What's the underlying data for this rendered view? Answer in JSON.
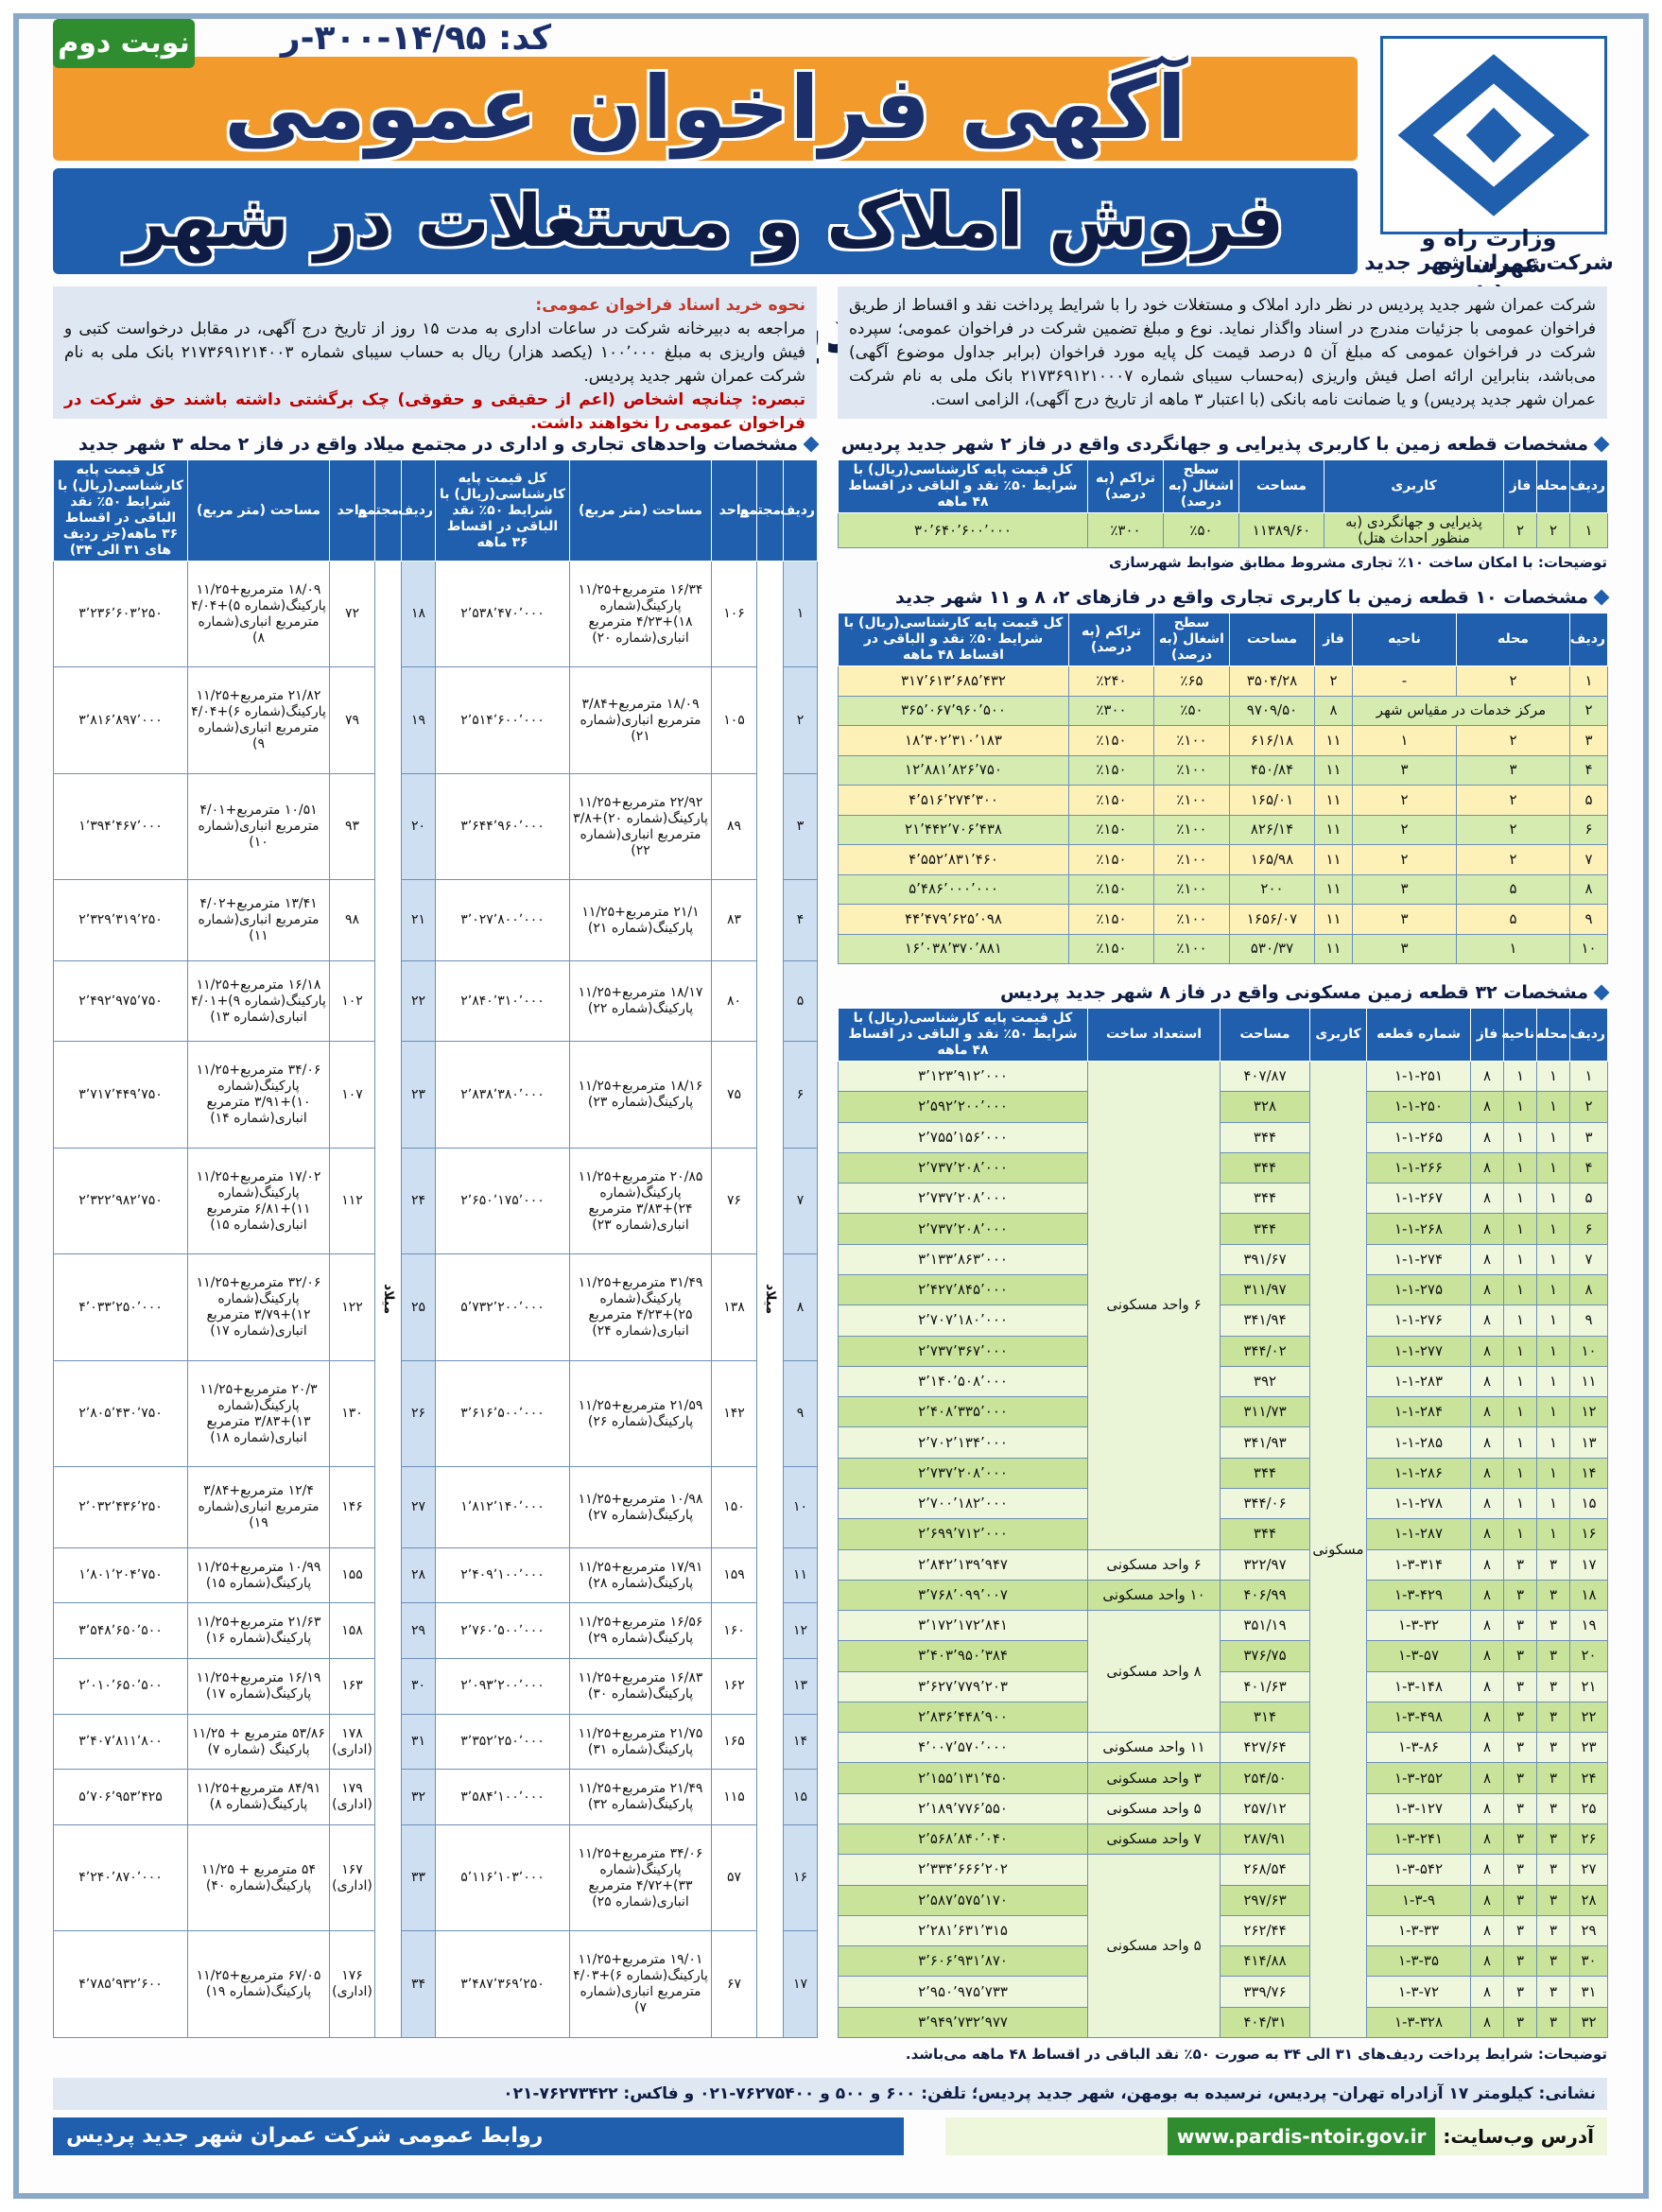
{
  "header": {
    "badge": "نوبت دوم",
    "code": "کد: ۱۴/۹۵-۳۰۰-ر",
    "title": "آگهی فراخوان عمومی",
    "subtitle": "فروش املاک و مستغلات در شهر جدید پردیس",
    "ministry": "وزارت راه و شهرسازی",
    "company": "شرکت عمران شهر جدید پردیس"
  },
  "intro": {
    "text": "شرکت عمران شهر جدید پردیس در نظر دارد املاک و مستغلات خود را با شرایط پرداخت نقد و اقساط از طریق فراخوان عمومی با جزئیات مندرج در اسناد واگذار نماید. نوع و مبلغ تضمین شرکت در فراخوان عمومی؛ سپرده شرکت در فراخوان عمومی که مبلغ آن ۵ درصد قیمت کل پایه مورد فراخوان (برابر جداول موضوع آگهی) می‌باشد، بنابراین ارائه اصل فیش واریزی (به‌حساب سیبای شماره ۲۱۷۳۶۹۱۲۱۰۰۰۷ بانک ملی به نام شرکت عمران شهر جدید پردیس) و یا ضمانت نامه بانکی (با اعتبار ۳ ماهه از تاریخ درج آگهی)، الزامی است."
  },
  "purchase": {
    "heading": "نحوه خرید اسناد فراخوان عمومی:",
    "text": "مراجعه به دبیرخانه شرکت در ساعات اداری به مدت ۱۵ روز از تاریخ درج آگهی، در مقابل درخواست کتبی و فیش واریزی به مبلغ ۱۰۰٬۰۰۰ (یکصد هزار) ریال به حساب سیبای شماره ۲۱۷۳۶۹۱۲۱۴۰۰۳ بانک ملی به نام شرکت عمران شهر جدید پردیس.",
    "note": "تبصره: چنانچه اشخاص (اعم از حقیقی و حقوقی) چک برگشتی داشته باشند حق شرکت در فراخوان عمومی را نخواهند داشت."
  },
  "table1": {
    "title": "مشخصات قطعه زمین با کاربری پذیرایی و جهانگردی واقع در فاز ۲ شهر جدید پردیس",
    "columns": [
      "ردیف",
      "محله",
      "فاز",
      "کاربری",
      "مساحت",
      "سطح اشغال (به درصد)",
      "تراکم (به درصد)",
      "کل قیمت پایه کارشناسی(ریال) با شرایط ۵۰٪ نقد و الباقی در اقساط ۴۸ ماهه"
    ],
    "rows": [
      [
        "۱",
        "۲",
        "۲",
        "پذیرایی و جهانگردی (به منظور احداث هتل)",
        "۱۱۳۸۹/۶۰",
        "٪۵۰",
        "٪۳۰۰",
        "۳۰٬۶۴۰٬۶۰۰٬۰۰۰"
      ]
    ],
    "note": "توضیحات: با امکان ساخت ۱۰٪ تجاری مشروط مطابق ضوابط شهرسازی"
  },
  "table2": {
    "title": "مشخصات ۱۰ قطعه زمین با کاربری تجاری واقع در فازهای ۲، ۸ و ۱۱ شهر جدید پردیس",
    "columns": [
      "ردیف",
      "محله",
      "ناحیه",
      "فاز",
      "مساحت",
      "سطح اشغال (به درصد)",
      "تراکم (به درصد)",
      "کل قیمت پایه کارشناسی(ریال) با شرایط ۵۰٪ نقد و الباقی در اقساط ۴۸ ماهه"
    ],
    "rows": [
      [
        "۱",
        "۲",
        "-",
        "۲",
        "۳۵۰۴/۲۸",
        "٪۶۵",
        "٪۲۴۰",
        "۳۱۷٬۶۱۳٬۶۸۵٬۴۳۲"
      ],
      [
        "۲",
        "مرکز خدمات در مقیاس شهر",
        null,
        "۸",
        "۹۷۰۹/۵۰",
        "٪۵۰",
        "٪۳۰۰",
        "۳۶۵٬۰۶۷٬۹۶۰٬۵۰۰"
      ],
      [
        "۳",
        "۲",
        "۱",
        "۱۱",
        "۶۱۶/۱۸",
        "٪۱۰۰",
        "٪۱۵۰",
        "۱۸٬۳۰۲٬۳۱۰٬۱۸۳"
      ],
      [
        "۴",
        "۳",
        "۳",
        "۱۱",
        "۴۵۰/۸۴",
        "٪۱۰۰",
        "٪۱۵۰",
        "۱۲٬۸۸۱٬۸۲۶٬۷۵۰"
      ],
      [
        "۵",
        "۲",
        "۲",
        "۱۱",
        "۱۶۵/۰۱",
        "٪۱۰۰",
        "٪۱۵۰",
        "۴٬۵۱۶٬۲۷۴٬۳۰۰"
      ],
      [
        "۶",
        "۲",
        "۲",
        "۱۱",
        "۸۲۶/۱۴",
        "٪۱۰۰",
        "٪۱۵۰",
        "۲۱٬۴۴۲٬۷۰۶٬۴۳۸"
      ],
      [
        "۷",
        "۲",
        "۲",
        "۱۱",
        "۱۶۵/۹۸",
        "٪۱۰۰",
        "٪۱۵۰",
        "۴٬۵۵۲٬۸۳۱٬۴۶۰"
      ],
      [
        "۸",
        "۵",
        "۳",
        "۱۱",
        "۲۰۰",
        "٪۱۰۰",
        "٪۱۵۰",
        "۵٬۴۸۶٬۰۰۰٬۰۰۰"
      ],
      [
        "۹",
        "۵",
        "۳",
        "۱۱",
        "۱۶۵۶/۰۷",
        "٪۱۰۰",
        "٪۱۵۰",
        "۴۴٬۴۷۹٬۶۲۵٬۰۹۸"
      ],
      [
        "۱۰",
        "۱",
        "۳",
        "۱۱",
        "۵۳۰/۳۷",
        "٪۱۰۰",
        "٪۱۵۰",
        "۱۶٬۰۳۸٬۳۷۰٬۸۸۱"
      ]
    ]
  },
  "table3": {
    "title": "مشخصات ۳۲ قطعه زمین مسکونی واقع در فاز ۸ شهر جدید پردیس",
    "columns": [
      "ردیف",
      "محله",
      "ناحیه",
      "فاز",
      "شماره قطعه",
      "کاربری",
      "مساحت",
      "استعداد ساخت",
      "کل قیمت پایه کارشناسی(ریال) با شرایط ۵۰٪ نقد و الباقی در اقساط ۴۸ ماهه"
    ],
    "rows": [
      [
        "۱",
        "۱",
        "۱",
        "۸",
        "۱-۱-۲۵۱",
        "مسکونی",
        "۴۰۷/۸۷",
        "۶ واحد مسکونی",
        "۳٬۱۲۳٬۹۱۲٬۰۰۰"
      ],
      [
        "۲",
        "۱",
        "۱",
        "۸",
        "۱-۱-۲۵۰",
        null,
        "۳۲۸",
        null,
        "۲٬۵۹۲٬۲۰۰٬۰۰۰"
      ],
      [
        "۳",
        "۱",
        "۱",
        "۸",
        "۱-۱-۲۶۵",
        null,
        "۳۴۴",
        null,
        "۲٬۷۵۵٬۱۵۶٬۰۰۰"
      ],
      [
        "۴",
        "۱",
        "۱",
        "۸",
        "۱-۱-۲۶۶",
        null,
        "۳۴۴",
        null,
        "۲٬۷۳۷٬۲۰۸٬۰۰۰"
      ],
      [
        "۵",
        "۱",
        "۱",
        "۸",
        "۱-۱-۲۶۷",
        null,
        "۳۴۴",
        null,
        "۲٬۷۳۷٬۲۰۸٬۰۰۰"
      ],
      [
        "۶",
        "۱",
        "۱",
        "۸",
        "۱-۱-۲۶۸",
        null,
        "۳۴۴",
        null,
        "۲٬۷۳۷٬۲۰۸٬۰۰۰"
      ],
      [
        "۷",
        "۱",
        "۱",
        "۸",
        "۱-۱-۲۷۴",
        null,
        "۳۹۱/۶۷",
        null,
        "۳٬۱۳۳٬۸۶۳٬۰۰۰"
      ],
      [
        "۸",
        "۱",
        "۱",
        "۸",
        "۱-۱-۲۷۵",
        null,
        "۳۱۱/۹۷",
        null,
        "۲٬۴۲۷٬۸۴۵٬۰۰۰"
      ],
      [
        "۹",
        "۱",
        "۱",
        "۸",
        "۱-۱-۲۷۶",
        null,
        "۳۴۱/۹۴",
        null,
        "۲٬۷۰۷٬۱۸۰٬۰۰۰"
      ],
      [
        "۱۰",
        "۱",
        "۱",
        "۸",
        "۱-۱-۲۷۷",
        null,
        "۳۴۴/۰۲",
        null,
        "۲٬۷۳۷٬۳۶۷٬۰۰۰"
      ],
      [
        "۱۱",
        "۱",
        "۱",
        "۸",
        "۱-۱-۲۸۳",
        null,
        "۳۹۲",
        null,
        "۳٬۱۴۰٬۵۰۸٬۰۰۰"
      ],
      [
        "۱۲",
        "۱",
        "۱",
        "۸",
        "۱-۱-۲۸۴",
        null,
        "۳۱۱/۷۳",
        null,
        "۲٬۴۰۸٬۳۳۵٬۰۰۰"
      ],
      [
        "۱۳",
        "۱",
        "۱",
        "۸",
        "۱-۱-۲۸۵",
        null,
        "۳۴۱/۹۳",
        null,
        "۲٬۷۰۲٬۱۳۴٬۰۰۰"
      ],
      [
        "۱۴",
        "۱",
        "۱",
        "۸",
        "۱-۱-۲۸۶",
        null,
        "۳۴۴",
        null,
        "۲٬۷۳۷٬۲۰۸٬۰۰۰"
      ],
      [
        "۱۵",
        "۱",
        "۱",
        "۸",
        "۱-۱-۲۷۸",
        null,
        "۳۴۴/۰۶",
        null,
        "۲٬۷۰۰٬۱۸۲٬۰۰۰"
      ],
      [
        "۱۶",
        "۱",
        "۱",
        "۸",
        "۱-۱-۲۸۷",
        null,
        "۳۴۴",
        null,
        "۲٬۶۹۹٬۷۱۲٬۰۰۰"
      ],
      [
        "۱۷",
        "۳",
        "۳",
        "۸",
        "۱-۳-۳۱۴",
        null,
        "۳۲۲/۹۷",
        "۶ واحد مسکونی",
        "۲٬۸۴۲٬۱۳۹٬۹۴۷"
      ],
      [
        "۱۸",
        "۳",
        "۳",
        "۸",
        "۱-۳-۴۲۹",
        null,
        "۴۰۶/۹۹",
        "۱۰ واحد مسکونی",
        "۳٬۷۶۸٬۰۹۹٬۰۰۷"
      ],
      [
        "۱۹",
        "۳",
        "۳",
        "۸",
        "۱-۳-۳۲",
        null,
        "۳۵۱/۱۹",
        "۸ واحد مسکونی",
        "۳٬۱۷۲٬۱۷۲٬۸۴۱"
      ],
      [
        "۲۰",
        "۳",
        "۳",
        "۸",
        "۱-۳-۵۷",
        null,
        "۳۷۶/۷۵",
        null,
        "۳٬۴۰۳٬۹۵۰٬۳۸۴"
      ],
      [
        "۲۱",
        "۳",
        "۳",
        "۸",
        "۱-۳-۱۴۸",
        null,
        "۴۰۱/۶۳",
        null,
        "۳٬۶۲۷٬۷۷۹٬۲۰۳"
      ],
      [
        "۲۲",
        "۳",
        "۳",
        "۸",
        "۱-۳-۴۹۸",
        null,
        "۳۱۴",
        null,
        "۲٬۸۳۶٬۴۴۸٬۹۰۰"
      ],
      [
        "۲۳",
        "۳",
        "۳",
        "۸",
        "۱-۳-۸۶",
        null,
        "۴۲۷/۶۴",
        "۱۱ واحد مسکونی",
        "۴٬۰۰۷٬۵۷۰٬۰۰۰"
      ],
      [
        "۲۴",
        "۳",
        "۳",
        "۸",
        "۱-۳-۲۵۲",
        null,
        "۲۵۴/۵۰",
        "۳ واحد مسکونی",
        "۲٬۱۵۵٬۱۳۱٬۴۵۰"
      ],
      [
        "۲۵",
        "۳",
        "۳",
        "۸",
        "۱-۳-۱۲۷",
        null,
        "۲۵۷/۱۲",
        "۵ واحد مسکونی",
        "۲٬۱۸۹٬۷۷۶٬۵۵۰"
      ],
      [
        "۲۶",
        "۳",
        "۳",
        "۸",
        "۱-۳-۲۴۱",
        null,
        "۲۸۷/۹۱",
        "۷ واحد مسکونی",
        "۲٬۵۶۸٬۸۴۰٬۰۴۰"
      ],
      [
        "۲۷",
        "۳",
        "۳",
        "۸",
        "۱-۳-۵۴۲",
        null,
        "۲۶۸/۵۴",
        "۵ واحد مسکونی",
        "۲٬۳۳۴٬۶۶۶٬۲۰۲"
      ],
      [
        "۲۸",
        "۳",
        "۳",
        "۸",
        "۱-۳-۹",
        null,
        "۲۹۷/۶۳",
        null,
        "۲٬۵۸۷٬۵۷۵٬۱۷۰"
      ],
      [
        "۲۹",
        "۳",
        "۳",
        "۸",
        "۱-۳-۳۳",
        null,
        "۲۶۲/۴۴",
        null,
        "۲٬۲۸۱٬۶۳۱٬۳۱۵"
      ],
      [
        "۳۰",
        "۳",
        "۳",
        "۸",
        "۱-۳-۳۵",
        null,
        "۴۱۴/۸۸",
        null,
        "۳٬۶۰۶٬۹۳۱٬۸۷۰"
      ],
      [
        "۳۱",
        "۳",
        "۳",
        "۸",
        "۱-۳-۷۲",
        null,
        "۳۳۹/۷۶",
        null,
        "۲٬۹۵۰٬۹۷۵٬۷۳۳"
      ],
      [
        "۳۲",
        "۳",
        "۳",
        "۸",
        "۱-۳-۳۲۸",
        null,
        "۴۰۴/۳۱",
        null,
        "۳٬۹۴۹٬۷۳۲٬۹۷۷"
      ]
    ]
  },
  "table4": {
    "title": "مشخصات واحدهای تجاری و اداری در مجتمع میلاد واقع در فاز ۲ محله ۳ شهر جدید پردیس",
    "columns": [
      "ردیف",
      "مجتمع",
      "واحد",
      "مساحت (متر مربع)",
      "کل قیمت پایه کارشناسی(ریال) با شرایط ۵۰٪ نقد الباقی در اقساط ۳۶ ماهه",
      "ردیف",
      "مجتمع",
      "واحد",
      "مساحت (متر مربع)",
      "کل قیمت پایه کارشناسی(ریال) با شرایط ۵۰٪ نقد الباقی در اقساط ۳۶ ماهه(جز ردیف های ۳۱ الی ۳۴)"
    ],
    "rows": [
      [
        "۱",
        "میلاد",
        "۱۰۶",
        "۱۶/۳۴ مترمربع+۱۱/۲۵ پارکینگ(شماره ۱۸)+۴/۲۳ مترمربع انباری(شماره ۲۰)",
        "۲٬۵۳۸٬۴۷۰٬۰۰۰",
        "۱۸",
        "میلاد",
        "۷۲",
        "۱۸/۰۹ مترمربع+۱۱/۲۵ پارکینگ(شماره ۵)+۴/۰۴ مترمربع انباری(شماره ۸)",
        "۳٬۲۳۶٬۶۰۳٬۲۵۰"
      ],
      [
        "۲",
        null,
        "۱۰۵",
        "۱۸/۰۹ مترمربع+۳/۸۴ مترمربع انباری(شماره ۲۱)",
        "۲٬۵۱۴٬۶۰۰٬۰۰۰",
        "۱۹",
        null,
        "۷۹",
        "۲۱/۸۲ مترمربع+۱۱/۲۵ پارکینگ(شماره ۶)+۴/۰۴ مترمربع انباری(شماره ۹)",
        "۳٬۸۱۶٬۸۹۷٬۰۰۰"
      ],
      [
        "۳",
        null,
        "۸۹",
        "۲۲/۹۲ مترمربع+۱۱/۲۵ پارکینگ(شماره ۲۰)+۳/۸ مترمربع انباری(شماره ۲۲)",
        "۳٬۶۴۴٬۹۶۰٬۰۰۰",
        "۲۰",
        null,
        "۹۳",
        "۱۰/۵۱ مترمربع+۴/۰۱ مترمربع انباری(شماره ۱۰)",
        "۱٬۳۹۴٬۴۶۷٬۰۰۰"
      ],
      [
        "۴",
        null,
        "۸۳",
        "۲۱/۱ مترمربع+۱۱/۲۵ پارکینگ(شماره ۲۱)",
        "۳٬۰۲۷٬۸۰۰٬۰۰۰",
        "۲۱",
        null,
        "۹۸",
        "۱۳/۴۱ مترمربع+۴/۰۲ مترمربع انباری(شماره ۱۱)",
        "۲٬۳۲۹٬۳۱۹٬۲۵۰"
      ],
      [
        "۵",
        null,
        "۸۰",
        "۱۸/۱۷ مترمربع+۱۱/۲۵ پارکینگ(شماره ۲۲)",
        "۲٬۸۴۰٬۳۱۰٬۰۰۰",
        "۲۲",
        null,
        "۱۰۲",
        "۱۶/۱۸ مترمربع+۱۱/۲۵ پارکینگ(شماره ۹)+۴/۰۱ انباری(شماره ۱۳)",
        "۲٬۴۹۲٬۹۷۵٬۷۵۰"
      ],
      [
        "۶",
        null,
        "۷۵",
        "۱۸/۱۶ مترمربع+۱۱/۲۵ پارکینگ(شماره ۲۳)",
        "۲٬۸۳۸٬۳۸۰٬۰۰۰",
        "۲۳",
        null,
        "۱۰۷",
        "۳۴/۰۶ مترمربع+۱۱/۲۵ پارکینگ(شماره ۱۰)+۳/۹۱ مترمربع انباری(شماره ۱۴)",
        "۳٬۷۱۷٬۴۴۹٬۷۵۰"
      ],
      [
        "۷",
        null,
        "۷۶",
        "۲۰/۸۵ مترمربع+۱۱/۲۵ پارکینگ(شماره ۲۴)+۳/۸۳ مترمربع انباری(شماره ۲۳)",
        "۲٬۶۵۰٬۱۷۵٬۰۰۰",
        "۲۴",
        null,
        "۱۱۲",
        "۱۷/۰۲ مترمربع+۱۱/۲۵ پارکینگ(شماره ۱۱)+۶/۸۱ مترمربع انباری(شماره ۱۵)",
        "۲٬۳۲۲٬۹۸۲٬۷۵۰"
      ],
      [
        "۸",
        null,
        "۱۳۸",
        "۳۱/۴۹ مترمربع+۱۱/۲۵ پارکینگ(شماره ۲۵)+۴/۲۳ مترمربع انباری(شماره ۲۴)",
        "۵٬۷۳۲٬۲۰۰٬۰۰۰",
        "۲۵",
        null,
        "۱۲۲",
        "۳۲/۰۶ مترمربع+۱۱/۲۵ پارکینگ(شماره ۱۲)+۳/۷۹ مترمربع انباری(شماره ۱۷)",
        "۴٬۰۳۳٬۲۵۰٬۰۰۰"
      ],
      [
        "۹",
        null,
        "۱۴۲",
        "۲۱/۵۹ مترمربع+۱۱/۲۵ پارکینگ(شماره ۲۶)",
        "۳٬۶۱۶٬۵۰۰٬۰۰۰",
        "۲۶",
        null,
        "۱۳۰",
        "۲۰/۳ مترمربع+۱۱/۲۵ پارکینگ(شماره ۱۳)+۳/۸۳ مترمربع انباری(شماره ۱۸)",
        "۲٬۸۰۵٬۴۳۰٬۷۵۰"
      ],
      [
        "۱۰",
        null,
        "۱۵۰",
        "۱۰/۹۸ مترمربع+۱۱/۲۵ پارکینگ(شماره ۲۷)",
        "۱٬۸۱۲٬۱۴۰٬۰۰۰",
        "۲۷",
        null,
        "۱۴۶",
        "۱۲/۴ مترمربع+۳/۸۴ مترمربع انباری(شماره ۱۹)",
        "۲٬۰۳۲٬۴۳۶٬۲۵۰"
      ],
      [
        "۱۱",
        null,
        "۱۵۹",
        "۱۷/۹۱ مترمربع+۱۱/۲۵ پارکینگ(شماره ۲۸)",
        "۲٬۴۰۹٬۱۰۰٬۰۰۰",
        "۲۸",
        null,
        "۱۵۵",
        "۱۰/۹۹ مترمربع+۱۱/۲۵ پارکینگ(شماره ۱۵)",
        "۱٬۸۰۱٬۲۰۴٬۷۵۰"
      ],
      [
        "۱۲",
        null,
        "۱۶۰",
        "۱۶/۵۶ مترمربع+۱۱/۲۵ پارکینگ(شماره ۲۹)",
        "۲٬۷۶۰٬۵۰۰٬۰۰۰",
        "۲۹",
        null,
        "۱۵۸",
        "۲۱/۶۳ مترمربع+۱۱/۲۵ پارکینگ(شماره ۱۶)",
        "۳٬۵۴۸٬۶۵۰٬۵۰۰"
      ],
      [
        "۱۳",
        null,
        "۱۶۲",
        "۱۶/۸۳ مترمربع+۱۱/۲۵ پارکینگ(شماره ۳۰)",
        "۲٬۰۹۳٬۲۰۰٬۰۰۰",
        "۳۰",
        null,
        "۱۶۳",
        "۱۶/۱۹ مترمربع+۱۱/۲۵ پارکینگ(شماره ۱۷)",
        "۲٬۰۱۰٬۶۵۰٬۵۰۰"
      ],
      [
        "۱۴",
        null,
        "۱۶۵",
        "۲۱/۷۵ مترمربع+۱۱/۲۵ پارکینگ(شماره ۳۱)",
        "۳٬۳۵۲٬۲۵۰٬۰۰۰",
        "۳۱",
        null,
        "۱۷۸ (اداری)",
        "۵۳/۸۶ مترمربع + ۱۱/۲۵ پارکینگ (شماره ۷)",
        "۳٬۴۰۷٬۸۱۱٬۸۰۰"
      ],
      [
        "۱۵",
        null,
        "۱۱۵",
        "۲۱/۴۹ مترمربع+۱۱/۲۵ پارکینگ(شماره ۳۲)",
        "۳٬۵۸۴٬۱۰۰٬۰۰۰",
        "۳۲",
        null,
        "۱۷۹ (اداری)",
        "۸۴/۹۱ مترمربع+۱۱/۲۵ پارکینگ(شماره ۸)",
        "۵٬۷۰۶٬۹۵۳٬۴۲۵"
      ],
      [
        "۱۶",
        null,
        "۵۷",
        "۳۴/۰۶ مترمربع+۱۱/۲۵ پارکینگ(شماره ۳۳)+۴/۷۲ مترمربع انباری(شماره ۲۵)",
        "۵٬۱۱۶٬۱۰۳٬۰۰۰",
        "۳۳",
        null,
        "۱۶۷ (اداری)",
        "۵۴ مترمربع + ۱۱/۲۵ پارکینگ(شماره ۴۰)",
        "۴٬۲۴۰٬۸۷۰٬۰۰۰"
      ],
      [
        "۱۷",
        null,
        "۶۷",
        "۱۹/۰۱ مترمربع+۱۱/۲۵ پارکینگ(شماره ۶)+۴/۰۳ مترمربع انباری(شماره ۷)",
        "۳٬۴۸۷٬۳۶۹٬۲۵۰",
        "۳۴",
        null,
        "۱۷۶ (اداری)",
        "۶۷/۰۵ مترمربع+۱۱/۲۵ پارکینگ(شماره ۱۹)",
        "۴٬۷۸۵٬۹۳۲٬۶۰۰"
      ]
    ],
    "note": "توضیحات: شرایط پرداخت ردیف‌های ۳۱ الی ۳۴ به صورت ۵۰٪ نقد الباقی در اقساط ۴۸ ماهه می‌باشد."
  },
  "footer": {
    "address": "نشانی: کیلومتر ۱۷ آزادراه تهران- پردیس، نرسیده به بومهن، شهر جدید پردیس؛ تلفن: ۶۰۰ و ۵۰۰ و ۷۶۲۷۵۴۰۰-۰۲۱ و فاکس: ۷۶۲۷۳۴۲۲-۰۲۱",
    "public_relations": "روابط عمومی شرکت عمران شهر جدید پردیس",
    "website_label": "آدرس وب‌سایت:",
    "website": "www.pardis-ntoir.gov.ir"
  }
}
